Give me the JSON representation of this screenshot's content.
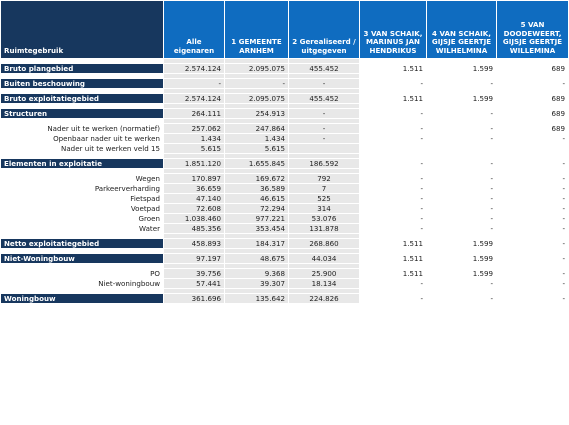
{
  "headers": [
    "Ruimtegebruik",
    "Alle eigenaren",
    "1 GEMEENTE ARNHEM",
    "2 Gerealiseerd / uitgegeven",
    "3 VAN SCHAIK, MARINUS JAN HENDRIKUS",
    "4 VAN SCHAIK, GIJSJE GEERTJE WILHELMINA",
    "5 VAN DOODEWEERT, GIJSJE GEERTJE WILLEMINA"
  ],
  "rows": [
    {
      "type": "spc"
    },
    {
      "type": "sec",
      "label": "Bruto plangebied",
      "v": [
        "2.574.124",
        "2.095.075",
        "455.452",
        "1.511",
        "1.599",
        "689"
      ]
    },
    {
      "type": "spc"
    },
    {
      "type": "sec",
      "label": "Buiten beschouwing",
      "v": [
        "-",
        "-",
        "-",
        "-",
        "-",
        "-"
      ]
    },
    {
      "type": "spc"
    },
    {
      "type": "sec",
      "label": "Bruto exploitatiegebied",
      "v": [
        "2.574.124",
        "2.095.075",
        "455.452",
        "1.511",
        "1.599",
        "689"
      ]
    },
    {
      "type": "spc"
    },
    {
      "type": "sec",
      "label": "Structuren",
      "v": [
        "264.111",
        "254.913",
        "-",
        "-",
        "-",
        "689"
      ]
    },
    {
      "type": "spc"
    },
    {
      "type": "row",
      "label": "Nader uit te werken (normatief)",
      "v": [
        "257.062",
        "247.864",
        "-",
        "-",
        "-",
        "689"
      ]
    },
    {
      "type": "row",
      "label": "Openbaar nader uit te werken",
      "v": [
        "1.434",
        "1.434",
        "-",
        "-",
        "-",
        "-"
      ]
    },
    {
      "type": "row",
      "label": "Nader uit te werken veld 15",
      "v": [
        "5.615",
        "5.615",
        "",
        "",
        "",
        ""
      ]
    },
    {
      "type": "spc"
    },
    {
      "type": "sec",
      "label": "Elementen in exploitatie",
      "v": [
        "1.851.120",
        "1.655.845",
        "186.592",
        "-",
        "-",
        "-"
      ]
    },
    {
      "type": "spc"
    },
    {
      "type": "row",
      "label": "Wegen",
      "v": [
        "170.897",
        "169.672",
        "792",
        "-",
        "-",
        "-"
      ]
    },
    {
      "type": "row",
      "label": "Parkeerverharding",
      "v": [
        "36.659",
        "36.589",
        "7",
        "-",
        "-",
        "-"
      ]
    },
    {
      "type": "row",
      "label": "Fietspad",
      "v": [
        "47.140",
        "46.615",
        "525",
        "-",
        "-",
        "-"
      ]
    },
    {
      "type": "row",
      "label": "Voetpad",
      "v": [
        "72.608",
        "72.294",
        "314",
        "-",
        "-",
        "-"
      ]
    },
    {
      "type": "row",
      "label": "Groen",
      "v": [
        "1.038.460",
        "977.221",
        "53.076",
        "-",
        "-",
        "-"
      ]
    },
    {
      "type": "row",
      "label": "Water",
      "v": [
        "485.356",
        "353.454",
        "131.878",
        "-",
        "-",
        "-"
      ]
    },
    {
      "type": "spc"
    },
    {
      "type": "sec",
      "label": "Netto exploitatiegebied",
      "v": [
        "458.893",
        "184.317",
        "268.860",
        "1.511",
        "1.599",
        "-"
      ]
    },
    {
      "type": "spc"
    },
    {
      "type": "sec",
      "label": "Niet-Woningbouw",
      "v": [
        "97.197",
        "48.675",
        "44.034",
        "1.511",
        "1.599",
        "-"
      ]
    },
    {
      "type": "spc"
    },
    {
      "type": "row",
      "label": "PO",
      "v": [
        "39.756",
        "9.368",
        "25.900",
        "1.511",
        "1.599",
        "-"
      ]
    },
    {
      "type": "row",
      "label": "Niet-woningbouw",
      "v": [
        "57.441",
        "39.307",
        "18.134",
        "-",
        "-",
        "-"
      ]
    },
    {
      "type": "spc"
    },
    {
      "type": "sec",
      "label": "Woningbouw",
      "v": [
        "361.696",
        "135.642",
        "224.826",
        "-",
        "-",
        "-"
      ]
    }
  ]
}
